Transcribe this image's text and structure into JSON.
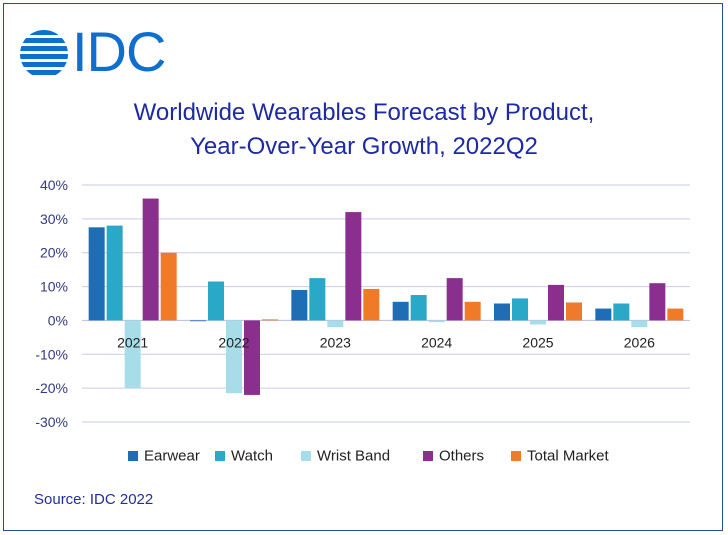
{
  "logo": {
    "text": "IDC",
    "color": "#0f6fcf"
  },
  "chart_data": {
    "type": "bar",
    "title": "Worldwide Wearables Forecast by Product, Year-Over-Year Growth, 2022Q2",
    "title_lines": [
      "Worldwide Wearables Forecast by Product,",
      "Year-Over-Year Growth, 2022Q2"
    ],
    "categories": [
      "2021",
      "2022",
      "2023",
      "2024",
      "2025",
      "2026"
    ],
    "series": [
      {
        "name": "Earwear",
        "color": "#1f6eb5",
        "values": [
          27.5,
          0,
          9,
          5.5,
          5,
          3.5
        ]
      },
      {
        "name": "Watch",
        "color": "#29a8c8",
        "values": [
          28,
          11.5,
          12.5,
          7.5,
          6.5,
          5
        ]
      },
      {
        "name": "Wrist Band",
        "color": "#a6dde8",
        "values": [
          -20,
          -21.5,
          -2,
          -0.5,
          -1.2,
          -2
        ]
      },
      {
        "name": "Others",
        "color": "#8b2f8e",
        "values": [
          36,
          -22,
          32,
          12.5,
          10.5,
          11
        ]
      },
      {
        "name": "Total Market",
        "color": "#ee7a2a",
        "values": [
          20,
          0.3,
          9.3,
          5.5,
          5.3,
          3.5
        ]
      }
    ],
    "ylim": [
      -30,
      40
    ],
    "yticks": [
      40,
      30,
      20,
      10,
      0,
      -10,
      -20,
      -30
    ],
    "ytick_labels": [
      "40%",
      "30%",
      "20%",
      "10%",
      "0%",
      "-10%",
      "-20%",
      "-30%"
    ],
    "grid": true,
    "legend_position": "bottom"
  },
  "source": "Source: IDC 2022"
}
